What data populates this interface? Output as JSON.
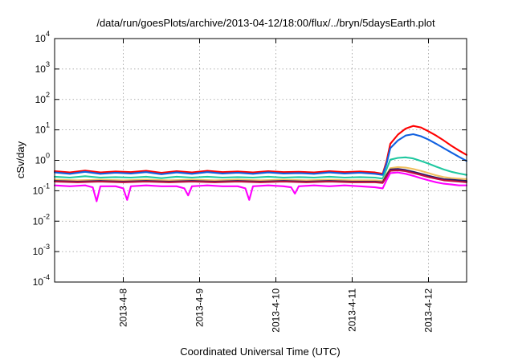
{
  "chart_data": {
    "type": "line",
    "title": "/data/run/goesPlots/archive/2013-04-12/18:00/flux/../bryn/5daysEarth.plot",
    "xlabel": "Coordinated Universal Time (UTC)",
    "ylabel": "cSv/day",
    "yscale": "log",
    "ylim": [
      0.0001,
      10000
    ],
    "xlim": [
      0,
      5.4
    ],
    "grid": true,
    "legend": "none",
    "y_ticks": [
      {
        "value": 0.0001,
        "base": "10",
        "exp": "-4"
      },
      {
        "value": 0.001,
        "base": "10",
        "exp": "-3"
      },
      {
        "value": 0.01,
        "base": "10",
        "exp": "-2"
      },
      {
        "value": 0.1,
        "base": "10",
        "exp": "-1"
      },
      {
        "value": 1,
        "base": "10",
        "exp": "0"
      },
      {
        "value": 10,
        "base": "10",
        "exp": "1"
      },
      {
        "value": 100,
        "base": "10",
        "exp": "2"
      },
      {
        "value": 1000,
        "base": "10",
        "exp": "3"
      },
      {
        "value": 10000,
        "base": "10",
        "exp": "4"
      }
    ],
    "x_ticks": [
      {
        "value": 0.9,
        "label": "2013-4-8"
      },
      {
        "value": 1.9,
        "label": "2013-4-9"
      },
      {
        "value": 2.9,
        "label": "2013-4-10"
      },
      {
        "value": 3.9,
        "label": "2013-4-11"
      },
      {
        "value": 4.9,
        "label": "2013-4-12"
      }
    ],
    "series": [
      {
        "color": "#ff0000",
        "x": [
          0.0,
          0.2,
          0.4,
          0.6,
          0.8,
          1.0,
          1.2,
          1.4,
          1.6,
          1.8,
          2.0,
          2.2,
          2.4,
          2.6,
          2.8,
          3.0,
          3.2,
          3.4,
          3.6,
          3.8,
          4.0,
          4.2,
          4.3,
          4.35,
          4.4,
          4.5,
          4.6,
          4.7,
          4.8,
          4.9,
          5.0,
          5.1,
          5.2,
          5.3,
          5.4
        ],
        "y": [
          0.44,
          0.4,
          0.46,
          0.4,
          0.43,
          0.41,
          0.45,
          0.39,
          0.44,
          0.4,
          0.45,
          0.41,
          0.43,
          0.4,
          0.44,
          0.41,
          0.42,
          0.4,
          0.44,
          0.41,
          0.43,
          0.4,
          0.36,
          0.9,
          3.5,
          7.0,
          11.0,
          13.5,
          12.0,
          9.0,
          6.5,
          4.5,
          3.0,
          2.1,
          1.5
        ]
      },
      {
        "color": "#1060e0",
        "x": [
          0.0,
          0.2,
          0.4,
          0.6,
          0.8,
          1.0,
          1.2,
          1.4,
          1.6,
          1.8,
          2.0,
          2.2,
          2.4,
          2.6,
          2.8,
          3.0,
          3.2,
          3.4,
          3.6,
          3.8,
          4.0,
          4.2,
          4.3,
          4.35,
          4.4,
          4.5,
          4.6,
          4.7,
          4.8,
          4.9,
          5.0,
          5.1,
          5.2,
          5.3,
          5.4
        ],
        "y": [
          0.4,
          0.36,
          0.42,
          0.36,
          0.39,
          0.37,
          0.41,
          0.35,
          0.4,
          0.36,
          0.41,
          0.37,
          0.39,
          0.36,
          0.4,
          0.37,
          0.38,
          0.36,
          0.4,
          0.37,
          0.39,
          0.36,
          0.33,
          0.75,
          2.5,
          4.5,
          6.5,
          7.2,
          6.2,
          4.8,
          3.5,
          2.5,
          1.8,
          1.3,
          0.95
        ]
      },
      {
        "color": "#20c8a0",
        "x": [
          0.0,
          0.2,
          0.4,
          0.6,
          0.8,
          1.0,
          1.2,
          1.4,
          1.6,
          1.8,
          2.0,
          2.2,
          2.4,
          2.6,
          2.8,
          3.0,
          3.2,
          3.4,
          3.6,
          3.8,
          4.0,
          4.2,
          4.3,
          4.35,
          4.4,
          4.5,
          4.6,
          4.7,
          4.8,
          4.9,
          5.0,
          5.1,
          5.2,
          5.3,
          5.4
        ],
        "y": [
          0.29,
          0.27,
          0.3,
          0.27,
          0.28,
          0.27,
          0.29,
          0.26,
          0.29,
          0.27,
          0.29,
          0.27,
          0.28,
          0.27,
          0.29,
          0.27,
          0.28,
          0.27,
          0.29,
          0.27,
          0.28,
          0.27,
          0.25,
          0.5,
          1.05,
          1.2,
          1.25,
          1.15,
          0.95,
          0.78,
          0.62,
          0.5,
          0.42,
          0.37,
          0.33
        ]
      },
      {
        "color": "#f0c060",
        "x": [
          0.0,
          0.3,
          0.6,
          0.9,
          1.2,
          1.5,
          1.8,
          2.1,
          2.4,
          2.7,
          3.0,
          3.3,
          3.6,
          3.9,
          4.2,
          4.3,
          4.35,
          4.4,
          4.5,
          4.6,
          4.7,
          4.8,
          4.9,
          5.0,
          5.1,
          5.2,
          5.3,
          5.4
        ],
        "y": [
          0.23,
          0.22,
          0.23,
          0.22,
          0.23,
          0.22,
          0.23,
          0.22,
          0.23,
          0.22,
          0.23,
          0.22,
          0.23,
          0.22,
          0.22,
          0.21,
          0.35,
          0.55,
          0.6,
          0.58,
          0.52,
          0.45,
          0.38,
          0.32,
          0.28,
          0.26,
          0.25,
          0.24
        ]
      },
      {
        "color": "#2a1a6a",
        "x": [
          0.0,
          0.3,
          0.6,
          0.9,
          1.2,
          1.5,
          1.8,
          2.1,
          2.4,
          2.7,
          3.0,
          3.3,
          3.6,
          3.9,
          4.2,
          4.3,
          4.35,
          4.4,
          4.5,
          4.6,
          4.7,
          4.8,
          4.9,
          5.0,
          5.1,
          5.2,
          5.3,
          5.4
        ],
        "y": [
          0.21,
          0.2,
          0.21,
          0.2,
          0.21,
          0.2,
          0.21,
          0.2,
          0.21,
          0.2,
          0.21,
          0.2,
          0.21,
          0.2,
          0.2,
          0.19,
          0.32,
          0.5,
          0.52,
          0.48,
          0.42,
          0.36,
          0.31,
          0.27,
          0.24,
          0.23,
          0.22,
          0.21
        ]
      },
      {
        "color": "#c01040",
        "x": [
          0.0,
          0.3,
          0.6,
          0.9,
          1.2,
          1.5,
          1.8,
          2.1,
          2.4,
          2.7,
          3.0,
          3.3,
          3.6,
          3.9,
          4.2,
          4.3,
          4.35,
          4.4,
          4.5,
          4.6,
          4.7,
          4.8,
          4.9,
          5.0,
          5.1,
          5.2,
          5.3,
          5.4
        ],
        "y": [
          0.2,
          0.19,
          0.2,
          0.19,
          0.2,
          0.19,
          0.2,
          0.19,
          0.2,
          0.19,
          0.2,
          0.19,
          0.2,
          0.19,
          0.19,
          0.18,
          0.28,
          0.45,
          0.47,
          0.44,
          0.38,
          0.33,
          0.28,
          0.25,
          0.22,
          0.21,
          0.2,
          0.19
        ]
      },
      {
        "color": "#ff00ff",
        "x": [
          0.0,
          0.2,
          0.4,
          0.5,
          0.55,
          0.6,
          0.8,
          0.9,
          0.95,
          1.0,
          1.2,
          1.4,
          1.6,
          1.7,
          1.75,
          1.8,
          2.0,
          2.2,
          2.4,
          2.5,
          2.55,
          2.6,
          2.8,
          3.0,
          3.1,
          3.15,
          3.2,
          3.4,
          3.6,
          3.8,
          4.0,
          4.2,
          4.3,
          4.35,
          4.4,
          4.5,
          4.6,
          4.7,
          4.8,
          4.9,
          5.0,
          5.1,
          5.2,
          5.3,
          5.4
        ],
        "y": [
          0.15,
          0.14,
          0.15,
          0.13,
          0.045,
          0.14,
          0.14,
          0.12,
          0.05,
          0.14,
          0.15,
          0.14,
          0.14,
          0.12,
          0.07,
          0.14,
          0.15,
          0.14,
          0.14,
          0.12,
          0.05,
          0.14,
          0.15,
          0.14,
          0.13,
          0.08,
          0.14,
          0.15,
          0.14,
          0.15,
          0.14,
          0.13,
          0.12,
          0.22,
          0.38,
          0.4,
          0.36,
          0.31,
          0.26,
          0.22,
          0.19,
          0.17,
          0.16,
          0.15,
          0.15
        ]
      }
    ]
  }
}
